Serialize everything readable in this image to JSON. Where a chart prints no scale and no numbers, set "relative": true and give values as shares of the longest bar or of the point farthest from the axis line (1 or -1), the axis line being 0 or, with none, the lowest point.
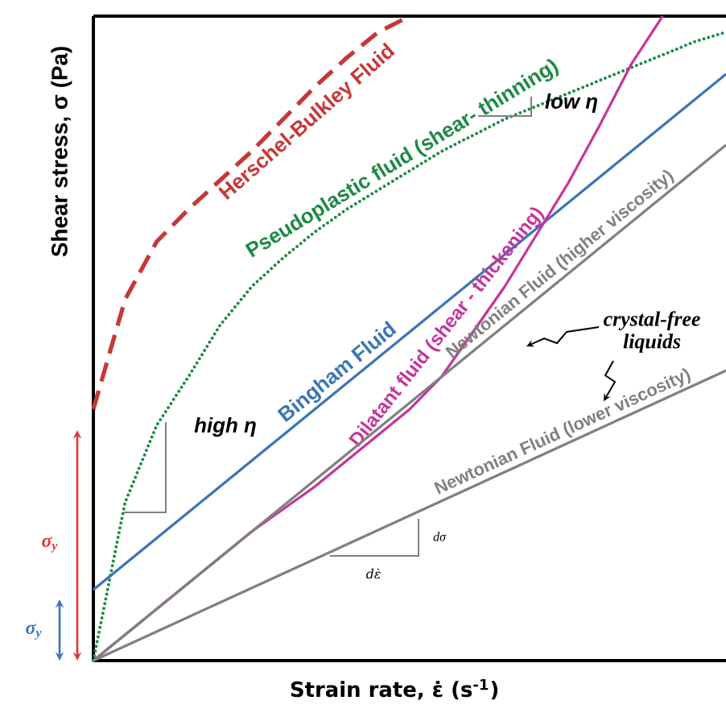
{
  "chart_data": {
    "type": "line",
    "relative": true,
    "xlabel": "Strain rate, ε̇ (s$^{-1}$)",
    "ylabel": "Shear stress, σ (Pa)",
    "categories": [
      null,
      null,
      null,
      null,
      null,
      null,
      null,
      null,
      null,
      null,
      null,
      null,
      null,
      null,
      null,
      null,
      null,
      null,
      null,
      null,
      null
    ],
    "series": [
      {
        "name": "Herschel-Bulkley Fluid",
        "color": "#c83737",
        "line_style": "dashed",
        "values": [
          0.39,
          0.56,
          0.65,
          0.7,
          0.745,
          0.79,
          0.84,
          0.89,
          0.935,
          0.975,
          1.0,
          null,
          null,
          null,
          null,
          null,
          null,
          null,
          null,
          null,
          null
        ]
      },
      {
        "name": "Pseudoplastic fluid (shear- thinning)",
        "color": "#1e8a45",
        "line_style": "dotted",
        "values": [
          0,
          0.245,
          0.365,
          0.44,
          0.52,
          0.58,
          0.625,
          0.665,
          0.7,
          0.73,
          0.76,
          0.79,
          0.815,
          0.84,
          0.86,
          0.88,
          0.9,
          0.92,
          0.94,
          0.96,
          0.975
        ]
      },
      {
        "name": "Bingham Fluid",
        "color": "#3a75b5",
        "line_style": "solid",
        "values": [
          0.11,
          0.15,
          0.19,
          0.23,
          0.27,
          0.31,
          0.35,
          0.39,
          0.43,
          0.47,
          0.51,
          0.55,
          0.59,
          0.63,
          0.67,
          0.71,
          0.75,
          0.79,
          0.83,
          0.87,
          0.91
        ]
      },
      {
        "name": "Dilatant fluid (shear - thickening)",
        "color": "#c4359c",
        "line_style": "solid",
        "values": [
          0,
          0.04,
          0.08,
          0.12,
          0.16,
          0.2,
          0.235,
          0.27,
          0.31,
          0.35,
          0.39,
          0.44,
          0.51,
          0.58,
          0.66,
          0.74,
          0.83,
          0.925,
          1.0,
          null,
          null
        ]
      },
      {
        "name": "Newtonian Fluid (higher viscosity)",
        "color": "#808080",
        "line_style": "solid",
        "values": [
          0,
          0.04,
          0.08,
          0.12,
          0.16,
          0.2,
          0.24,
          0.28,
          0.32,
          0.36,
          0.4,
          0.44,
          0.48,
          0.52,
          0.56,
          0.6,
          0.64,
          0.68,
          0.72,
          0.76,
          0.8
        ]
      },
      {
        "name": "Newtonian Fluid (lower viscosity)",
        "color": "#808080",
        "line_style": "solid",
        "values": [
          0,
          0.0225,
          0.045,
          0.0675,
          0.09,
          0.1125,
          0.135,
          0.1575,
          0.18,
          0.2025,
          0.225,
          0.2475,
          0.27,
          0.2925,
          0.315,
          0.3375,
          0.36,
          0.3825,
          0.405,
          0.4275,
          0.45
        ]
      }
    ],
    "annotations": [
      "high η",
      "low η",
      "crystal-free liquids",
      "dσ",
      "dε̇",
      "σ$_{y}$",
      "σ$_{y}$"
    ]
  }
}
